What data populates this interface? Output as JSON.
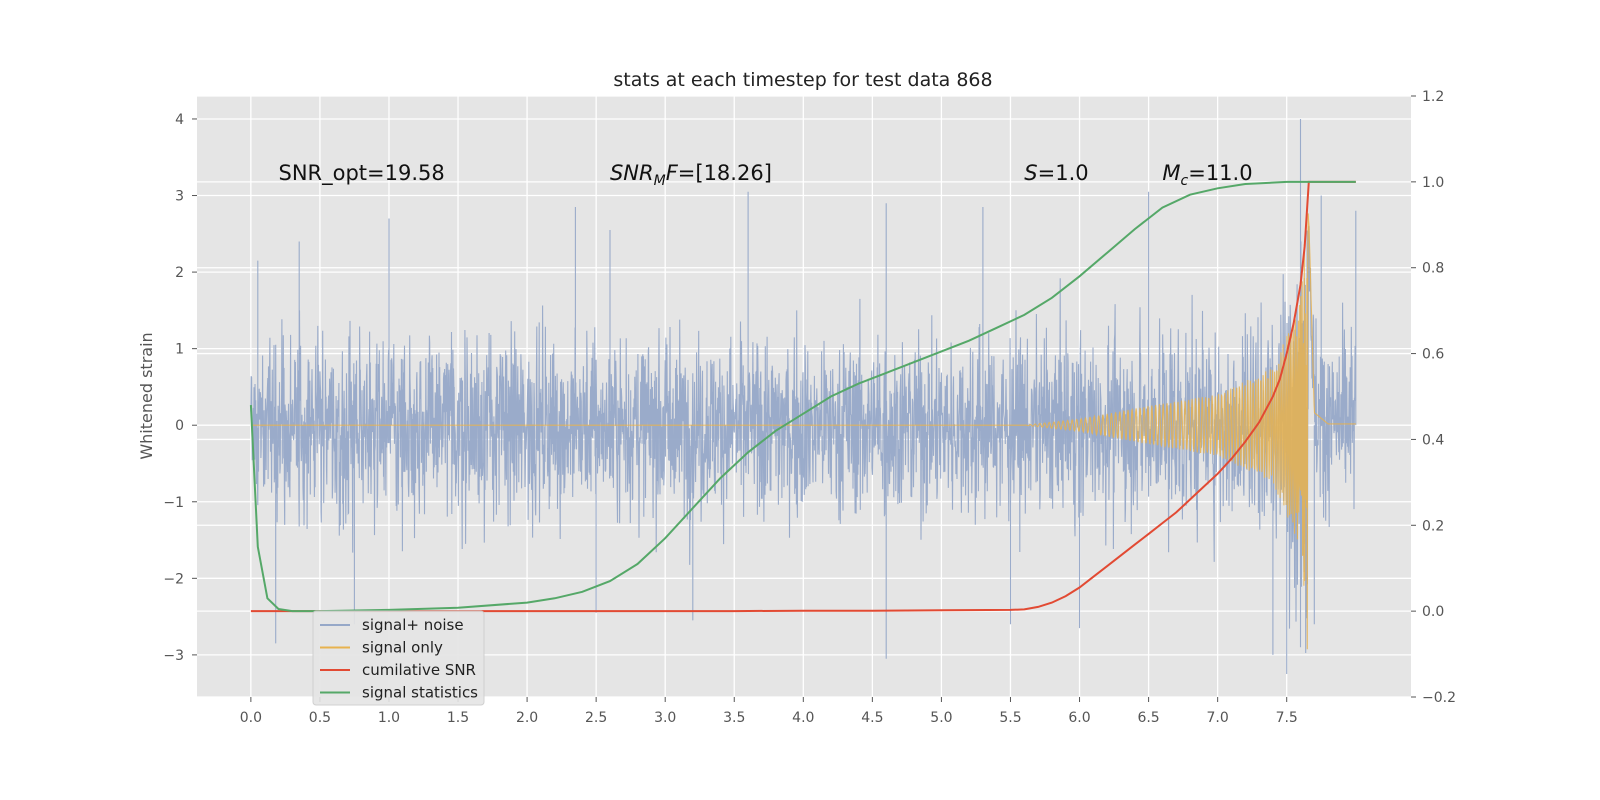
{
  "chart_data": {
    "type": "line",
    "title": "stats at each timestep for test data 868",
    "ylabel": "Whitened strain",
    "xlabel": "",
    "y2label": "",
    "xlim": [
      -0.39,
      8.4
    ],
    "ylim": [
      -3.55,
      4.3
    ],
    "y2lim": [
      -0.2,
      1.2
    ],
    "grid": true,
    "legend_placement": "lower-left",
    "xticks": [
      "0.0",
      "0.5",
      "1.0",
      "1.5",
      "2.0",
      "2.5",
      "3.0",
      "3.5",
      "4.0",
      "4.5",
      "5.0",
      "5.5",
      "6.0",
      "6.5",
      "7.0",
      "7.5"
    ],
    "xtick_values": [
      0,
      0.5,
      1,
      1.5,
      2,
      2.5,
      3,
      3.5,
      4,
      4.5,
      5,
      5.5,
      6,
      6.5,
      7,
      7.5
    ],
    "yticks": [
      "−3",
      "−2",
      "−1",
      "0",
      "1",
      "2",
      "3",
      "4"
    ],
    "ytick_values": [
      -3,
      -2,
      -1,
      0,
      1,
      2,
      3,
      4
    ],
    "y2ticks": [
      "−0.2",
      "0.0",
      "0.2",
      "0.4",
      "0.6",
      "0.8",
      "1.0",
      "1.2"
    ],
    "y2tick_values": [
      -0.2,
      0,
      0.2,
      0.4,
      0.6,
      0.8,
      1.0,
      1.2
    ],
    "annotations": [
      {
        "id": "snr-opt",
        "text": "SNR_opt=19.58",
        "x": 0.2,
        "y": 3.2
      },
      {
        "id": "snr-mf",
        "text": "SNR",
        "sub": "M",
        "tail": "F=[18.26]",
        "italic": true,
        "x": 2.6,
        "y": 3.2
      },
      {
        "id": "s-val",
        "text": "S",
        "tail": "=1.0",
        "italic": true,
        "x": 5.6,
        "y": 3.2
      },
      {
        "id": "mc-val",
        "text": "M",
        "sub": "c",
        "tail": "=11.0",
        "italic": true,
        "x": 6.6,
        "y": 3.2
      }
    ],
    "series": [
      {
        "name": "signal+ noise",
        "color": "#96a8c8",
        "axis": "left",
        "kind": "noise",
        "x_range": [
          0,
          8.0
        ],
        "envelope_typical": 1.3,
        "peaks": [
          [
            0.05,
            2.15
          ],
          [
            0.35,
            2.4
          ],
          [
            1.0,
            2.7
          ],
          [
            2.35,
            2.85
          ],
          [
            2.6,
            2.55
          ],
          [
            3.6,
            3.05
          ],
          [
            4.6,
            2.9
          ],
          [
            5.3,
            2.85
          ],
          [
            6.5,
            3.05
          ],
          [
            7.6,
            4.0
          ],
          [
            7.75,
            3.0
          ],
          [
            8.0,
            2.8
          ]
        ],
        "troughs": [
          [
            0.18,
            -2.85
          ],
          [
            0.75,
            -2.6
          ],
          [
            2.5,
            -2.45
          ],
          [
            3.2,
            -2.55
          ],
          [
            4.6,
            -3.05
          ],
          [
            5.5,
            -2.6
          ],
          [
            6.0,
            -2.65
          ],
          [
            7.4,
            -3.0
          ],
          [
            7.5,
            -3.25
          ],
          [
            7.6,
            -2.9
          ],
          [
            7.7,
            -2.6
          ]
        ]
      },
      {
        "name": "signal only",
        "color": "#e8b24e",
        "axis": "left",
        "kind": "chirp",
        "t_start": 5.6,
        "t_merge": 7.66,
        "t_end": 8.0,
        "amp_at": [
          [
            5.6,
            0.0
          ],
          [
            6.0,
            0.08
          ],
          [
            6.5,
            0.25
          ],
          [
            7.0,
            0.4
          ],
          [
            7.4,
            0.75
          ],
          [
            7.6,
            1.6
          ],
          [
            7.66,
            3.3
          ],
          [
            7.7,
            0.2
          ],
          [
            7.8,
            0.02
          ]
        ]
      },
      {
        "name": "cumilative SNR",
        "color": "#e24a33",
        "axis": "right",
        "x": [
          0,
          0.5,
          1,
          1.5,
          2,
          2.5,
          3,
          3.5,
          4,
          4.5,
          5,
          5.5,
          5.6,
          5.7,
          5.8,
          5.9,
          6.0,
          6.1,
          6.2,
          6.3,
          6.4,
          6.5,
          6.6,
          6.7,
          6.8,
          6.9,
          7.0,
          7.1,
          7.2,
          7.3,
          7.4,
          7.45,
          7.5,
          7.55,
          7.6,
          7.63,
          7.66,
          8.0
        ],
        "y": [
          0,
          0,
          0,
          0,
          0,
          0,
          0,
          0,
          0.001,
          0.001,
          0.002,
          0.003,
          0.004,
          0.01,
          0.02,
          0.035,
          0.055,
          0.08,
          0.105,
          0.13,
          0.155,
          0.18,
          0.205,
          0.23,
          0.26,
          0.29,
          0.32,
          0.355,
          0.395,
          0.44,
          0.5,
          0.54,
          0.6,
          0.67,
          0.76,
          0.85,
          1.0,
          1.0
        ]
      },
      {
        "name": "signal statistics",
        "color": "#55a868",
        "axis": "right",
        "x": [
          0,
          0.05,
          0.12,
          0.2,
          0.3,
          0.5,
          1,
          1.5,
          2,
          2.2,
          2.4,
          2.6,
          2.8,
          3.0,
          3.2,
          3.4,
          3.6,
          3.8,
          4.0,
          4.2,
          4.4,
          4.6,
          4.8,
          5.0,
          5.2,
          5.4,
          5.6,
          5.8,
          6.0,
          6.2,
          6.4,
          6.6,
          6.8,
          7.0,
          7.2,
          7.5,
          7.66,
          8.0
        ],
        "y": [
          0.48,
          0.15,
          0.03,
          0.005,
          0.0,
          0.0,
          0.003,
          0.008,
          0.02,
          0.03,
          0.045,
          0.07,
          0.11,
          0.17,
          0.24,
          0.31,
          0.37,
          0.42,
          0.46,
          0.5,
          0.53,
          0.555,
          0.58,
          0.605,
          0.63,
          0.66,
          0.69,
          0.73,
          0.78,
          0.835,
          0.89,
          0.94,
          0.97,
          0.985,
          0.995,
          1.0,
          1.0,
          1.0
        ]
      }
    ]
  }
}
